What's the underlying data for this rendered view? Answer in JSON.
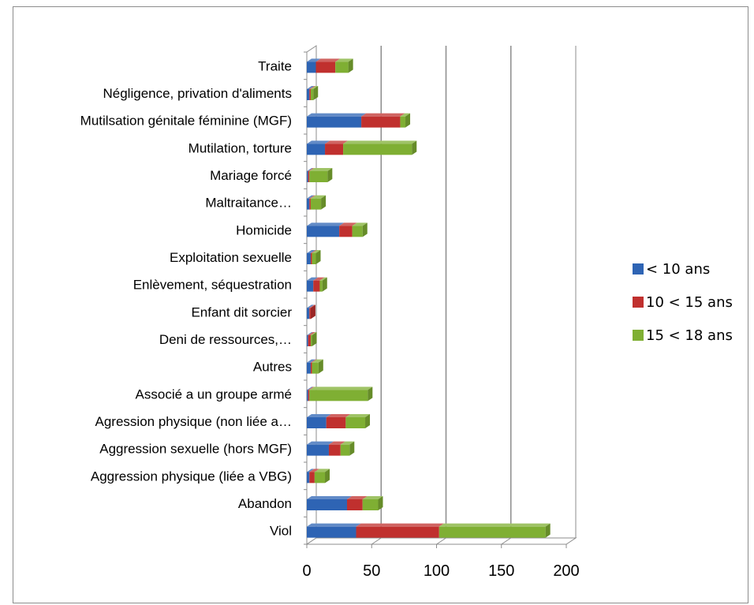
{
  "chart_data": {
    "type": "bar",
    "orientation": "horizontal",
    "stacked": true,
    "three_d": true,
    "categories": [
      "Viol",
      "Abandon",
      "Aggression physique (liée a VBG)",
      "Aggression sexuelle (hors MGF)",
      "Agression physique  (non liée a…",
      "Associé a un groupe armé",
      "Autres",
      "Deni de ressources,…",
      "Enfant dit sorcier",
      "Enlèvement, séquestration",
      "Exploitation sexuelle",
      "Homicide",
      "Maltraitance…",
      "Mariage forcé",
      "Mutilation, torture",
      "Mutilsation génitale féminine (MGF)",
      "Négligence, privation d'aliments",
      "Traite"
    ],
    "series": [
      {
        "name": "< 10 ans",
        "color": "#2E64B4",
        "values": [
          38,
          31,
          2,
          17,
          15,
          1,
          3,
          1,
          2,
          5,
          3,
          25,
          2,
          1,
          14,
          42,
          2,
          7
        ]
      },
      {
        "name": "10 < 15 ans",
        "color": "#C0302E",
        "values": [
          64,
          12,
          4,
          9,
          15,
          1,
          1,
          2,
          1,
          5,
          1,
          10,
          1,
          1,
          14,
          30,
          1,
          15
        ]
      },
      {
        "name": "15 < 18 ans",
        "color": "#7FAF33",
        "values": [
          82,
          12,
          8,
          7,
          15,
          45,
          5,
          1,
          0,
          2,
          3,
          8,
          8,
          14,
          53,
          4,
          2,
          10
        ]
      }
    ],
    "x_ticks": [
      "0",
      "50",
      "100",
      "150",
      "200"
    ],
    "xlim": [
      0,
      200
    ],
    "grid": true,
    "legend_position": "right",
    "title": "",
    "xlabel": "",
    "ylabel": ""
  }
}
